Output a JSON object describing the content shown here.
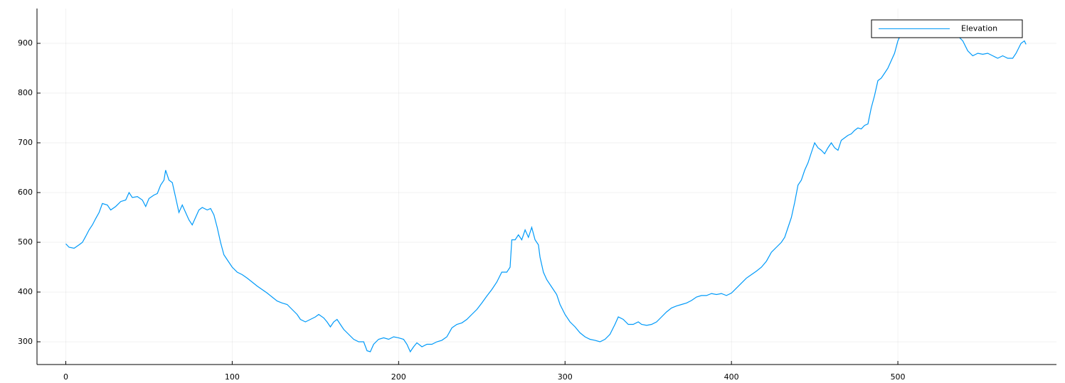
{
  "chart_data": {
    "type": "line",
    "x": [
      0,
      2,
      5,
      8,
      10,
      12,
      14,
      16,
      18,
      20,
      22,
      25,
      27,
      30,
      33,
      36,
      38,
      40,
      43,
      46,
      48,
      50,
      53,
      55,
      57,
      59,
      60,
      62,
      64,
      66,
      68,
      70,
      72,
      74,
      76,
      78,
      80,
      82,
      85,
      87,
      89,
      91,
      93,
      95,
      98,
      100,
      103,
      106,
      109,
      112,
      115,
      118,
      121,
      124,
      127,
      130,
      133,
      136,
      139,
      141,
      144,
      147,
      150,
      152,
      155,
      157,
      159,
      161,
      163,
      165,
      167,
      170,
      173,
      176,
      179,
      181,
      183,
      185,
      188,
      191,
      194,
      197,
      200,
      203,
      205,
      207,
      209,
      211,
      214,
      217,
      220,
      223,
      226,
      229,
      232,
      235,
      238,
      241,
      244,
      247,
      250,
      253,
      256,
      259,
      262,
      265,
      267,
      268,
      270,
      272,
      274,
      276,
      278,
      280,
      282,
      284,
      285,
      287,
      289,
      292,
      295,
      297,
      300,
      303,
      306,
      309,
      312,
      315,
      318,
      321,
      324,
      327,
      330,
      332,
      335,
      338,
      341,
      344,
      346,
      349,
      352,
      355,
      358,
      361,
      364,
      367,
      370,
      373,
      376,
      379,
      382,
      385,
      388,
      391,
      394,
      397,
      400,
      403,
      406,
      409,
      412,
      415,
      418,
      421,
      424,
      427,
      430,
      432,
      434,
      436,
      438,
      440,
      442,
      444,
      446,
      448,
      450,
      452,
      454,
      456,
      458,
      460,
      462,
      464,
      466,
      468,
      470,
      472,
      474,
      476,
      478,
      480,
      482,
      484,
      486,
      488,
      490,
      492,
      494,
      496,
      498,
      500,
      502,
      504,
      506,
      508,
      510,
      512,
      515,
      518,
      521,
      524,
      527,
      530,
      533,
      536,
      539,
      542,
      545,
      548,
      551,
      554,
      557,
      560,
      563,
      566,
      569,
      571,
      574,
      576,
      577
    ],
    "series": [
      {
        "name": "Elevation",
        "color": "#009af9",
        "values": [
          497,
          490,
          488,
          495,
          500,
          512,
          525,
          535,
          548,
          560,
          578,
          575,
          565,
          572,
          582,
          585,
          600,
          590,
          592,
          585,
          572,
          588,
          595,
          598,
          615,
          625,
          645,
          625,
          620,
          590,
          560,
          575,
          560,
          545,
          535,
          550,
          565,
          570,
          565,
          568,
          555,
          530,
          500,
          475,
          460,
          450,
          440,
          435,
          428,
          420,
          412,
          405,
          398,
          390,
          382,
          378,
          375,
          365,
          355,
          345,
          340,
          345,
          350,
          355,
          348,
          340,
          330,
          340,
          345,
          335,
          325,
          315,
          305,
          300,
          300,
          282,
          280,
          295,
          305,
          308,
          305,
          310,
          308,
          305,
          295,
          280,
          290,
          298,
          290,
          295,
          295,
          300,
          303,
          310,
          328,
          335,
          338,
          345,
          355,
          365,
          378,
          392,
          405,
          420,
          440,
          440,
          450,
          505,
          505,
          515,
          505,
          525,
          510,
          530,
          505,
          495,
          470,
          440,
          425,
          410,
          395,
          375,
          355,
          340,
          330,
          318,
          310,
          305,
          303,
          300,
          305,
          315,
          335,
          350,
          345,
          335,
          335,
          340,
          335,
          333,
          335,
          340,
          350,
          360,
          368,
          372,
          375,
          378,
          383,
          390,
          393,
          393,
          397,
          395,
          397,
          393,
          398,
          408,
          418,
          428,
          435,
          442,
          450,
          462,
          480,
          490,
          500,
          510,
          530,
          550,
          580,
          615,
          625,
          645,
          660,
          680,
          700,
          690,
          685,
          678,
          690,
          700,
          690,
          685,
          705,
          710,
          715,
          718,
          725,
          730,
          728,
          735,
          738,
          770,
          795,
          825,
          830,
          840,
          850,
          865,
          880,
          905,
          920,
          935,
          945,
          935,
          925,
          920,
          915,
          920,
          925,
          915,
          920,
          925,
          920,
          915,
          905,
          885,
          875,
          880,
          878,
          880,
          875,
          870,
          875,
          870,
          870,
          880,
          900,
          905,
          898
        ]
      }
    ],
    "xlim": [
      -17.3,
      595.3
    ],
    "ylim": [
      254.3,
      970
    ],
    "xticks": [
      0,
      100,
      200,
      300,
      400,
      500
    ],
    "yticks": [
      300,
      400,
      500,
      600,
      700,
      800,
      900
    ],
    "grid": true,
    "legend": "top-right"
  }
}
